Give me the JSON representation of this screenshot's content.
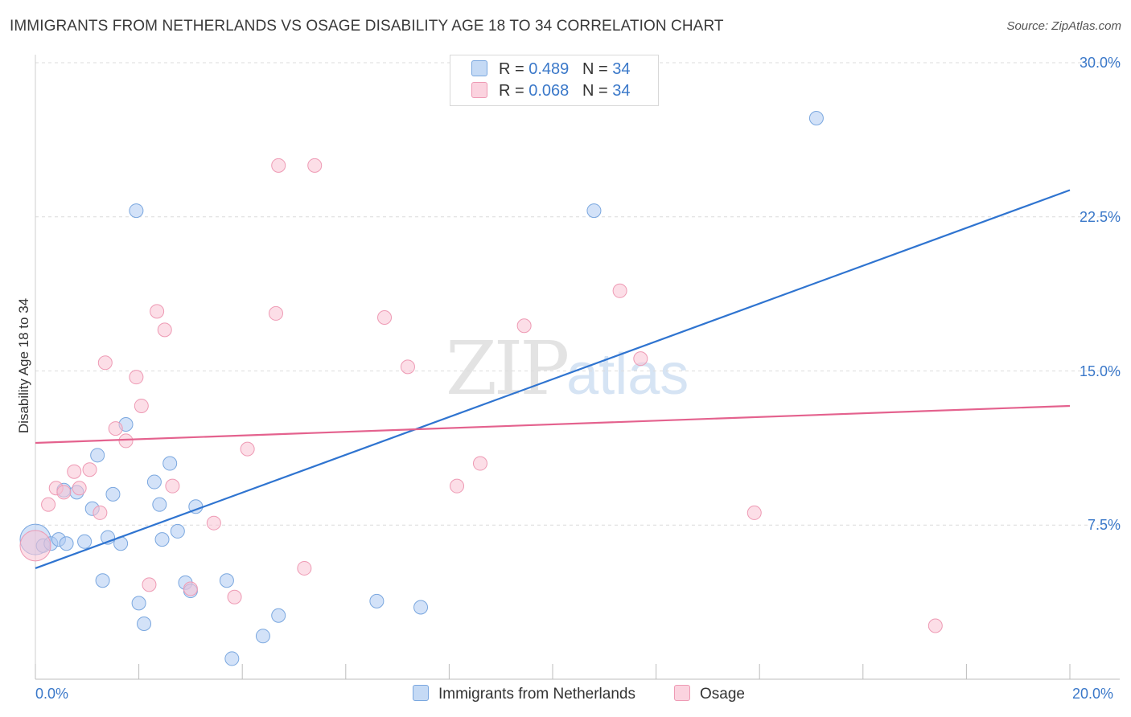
{
  "title": "IMMIGRANTS FROM NETHERLANDS VS OSAGE DISABILITY AGE 18 TO 34 CORRELATION CHART",
  "source": "Source: ZipAtlas.com",
  "watermark": {
    "zip": "ZIP",
    "atlas": "atlas"
  },
  "legend_top": [
    {
      "r_label": "R =",
      "r_value": "0.489",
      "n_label": "N =",
      "n_value": "34",
      "color": "#aecbf2"
    },
    {
      "r_label": "R =",
      "r_value": "0.068",
      "n_label": "N =",
      "n_value": "34",
      "color": "#f9c3d3"
    }
  ],
  "chart_data": {
    "type": "scatter",
    "title": "IMMIGRANTS FROM NETHERLANDS VS OSAGE DISABILITY AGE 18 TO 34 CORRELATION CHART",
    "xlabel": "",
    "ylabel": "Disability Age 18 to 34",
    "xlim": [
      0,
      20
    ],
    "ylim": [
      0,
      30
    ],
    "x_tick_labels": [
      "0.0%",
      "20.0%"
    ],
    "y_ticks": [
      7.5,
      15.0,
      22.5,
      30.0
    ],
    "y_tick_labels": [
      "7.5%",
      "15.0%",
      "22.5%",
      "30.0%"
    ],
    "grid": true,
    "series": [
      {
        "name": "Immigrants from Netherlands",
        "color": "#aecbf2",
        "stroke": "#7aa7df",
        "line_color": "#2f74d0",
        "trend": {
          "x": [
            0,
            20
          ],
          "y": [
            5.4,
            23.8
          ]
        },
        "points": [
          {
            "x": 0.0,
            "y": 6.8,
            "big": true
          },
          {
            "x": 0.15,
            "y": 6.5
          },
          {
            "x": 0.3,
            "y": 6.6
          },
          {
            "x": 0.45,
            "y": 6.8
          },
          {
            "x": 0.55,
            "y": 9.2
          },
          {
            "x": 0.6,
            "y": 6.6
          },
          {
            "x": 0.8,
            "y": 9.1
          },
          {
            "x": 0.95,
            "y": 6.7
          },
          {
            "x": 1.1,
            "y": 8.3
          },
          {
            "x": 1.2,
            "y": 10.9
          },
          {
            "x": 1.3,
            "y": 4.8
          },
          {
            "x": 1.4,
            "y": 6.9
          },
          {
            "x": 1.5,
            "y": 9.0
          },
          {
            "x": 1.65,
            "y": 6.6
          },
          {
            "x": 1.75,
            "y": 12.4
          },
          {
            "x": 1.95,
            "y": 22.8
          },
          {
            "x": 2.0,
            "y": 3.7
          },
          {
            "x": 2.1,
            "y": 2.7
          },
          {
            "x": 2.3,
            "y": 9.6
          },
          {
            "x": 2.4,
            "y": 8.5
          },
          {
            "x": 2.45,
            "y": 6.8
          },
          {
            "x": 2.6,
            "y": 10.5
          },
          {
            "x": 2.75,
            "y": 7.2
          },
          {
            "x": 2.9,
            "y": 4.7
          },
          {
            "x": 3.0,
            "y": 4.3
          },
          {
            "x": 3.1,
            "y": 8.4
          },
          {
            "x": 3.7,
            "y": 4.8
          },
          {
            "x": 3.8,
            "y": 1.0
          },
          {
            "x": 4.4,
            "y": 2.1
          },
          {
            "x": 4.7,
            "y": 3.1
          },
          {
            "x": 6.6,
            "y": 3.8
          },
          {
            "x": 7.45,
            "y": 3.5
          },
          {
            "x": 10.8,
            "y": 22.8
          },
          {
            "x": 15.1,
            "y": 27.3
          }
        ]
      },
      {
        "name": "Osage",
        "color": "#f9c3d3",
        "stroke": "#ee9ab4",
        "line_color": "#e4628e",
        "trend": {
          "x": [
            0,
            20
          ],
          "y": [
            11.5,
            13.3
          ]
        },
        "points": [
          {
            "x": 0.0,
            "y": 6.5,
            "big": true
          },
          {
            "x": 0.25,
            "y": 8.5
          },
          {
            "x": 0.4,
            "y": 9.3
          },
          {
            "x": 0.55,
            "y": 9.1
          },
          {
            "x": 0.75,
            "y": 10.1
          },
          {
            "x": 0.85,
            "y": 9.3
          },
          {
            "x": 1.05,
            "y": 10.2
          },
          {
            "x": 1.25,
            "y": 8.1
          },
          {
            "x": 1.35,
            "y": 15.4
          },
          {
            "x": 1.55,
            "y": 12.2
          },
          {
            "x": 1.75,
            "y": 11.6
          },
          {
            "x": 1.95,
            "y": 14.7
          },
          {
            "x": 2.05,
            "y": 13.3
          },
          {
            "x": 2.2,
            "y": 4.6
          },
          {
            "x": 2.35,
            "y": 17.9
          },
          {
            "x": 2.5,
            "y": 17.0
          },
          {
            "x": 2.65,
            "y": 9.4
          },
          {
            "x": 3.0,
            "y": 4.4
          },
          {
            "x": 3.45,
            "y": 7.6
          },
          {
            "x": 3.85,
            "y": 4.0
          },
          {
            "x": 4.1,
            "y": 11.2
          },
          {
            "x": 4.65,
            "y": 17.8
          },
          {
            "x": 4.7,
            "y": 25.0
          },
          {
            "x": 5.2,
            "y": 5.4
          },
          {
            "x": 5.4,
            "y": 25.0
          },
          {
            "x": 6.75,
            "y": 17.6
          },
          {
            "x": 7.2,
            "y": 15.2
          },
          {
            "x": 8.15,
            "y": 9.4
          },
          {
            "x": 8.6,
            "y": 10.5
          },
          {
            "x": 9.45,
            "y": 17.2
          },
          {
            "x": 11.3,
            "y": 18.9
          },
          {
            "x": 11.7,
            "y": 15.6
          },
          {
            "x": 13.9,
            "y": 8.1
          },
          {
            "x": 17.4,
            "y": 2.6
          }
        ]
      }
    ]
  }
}
